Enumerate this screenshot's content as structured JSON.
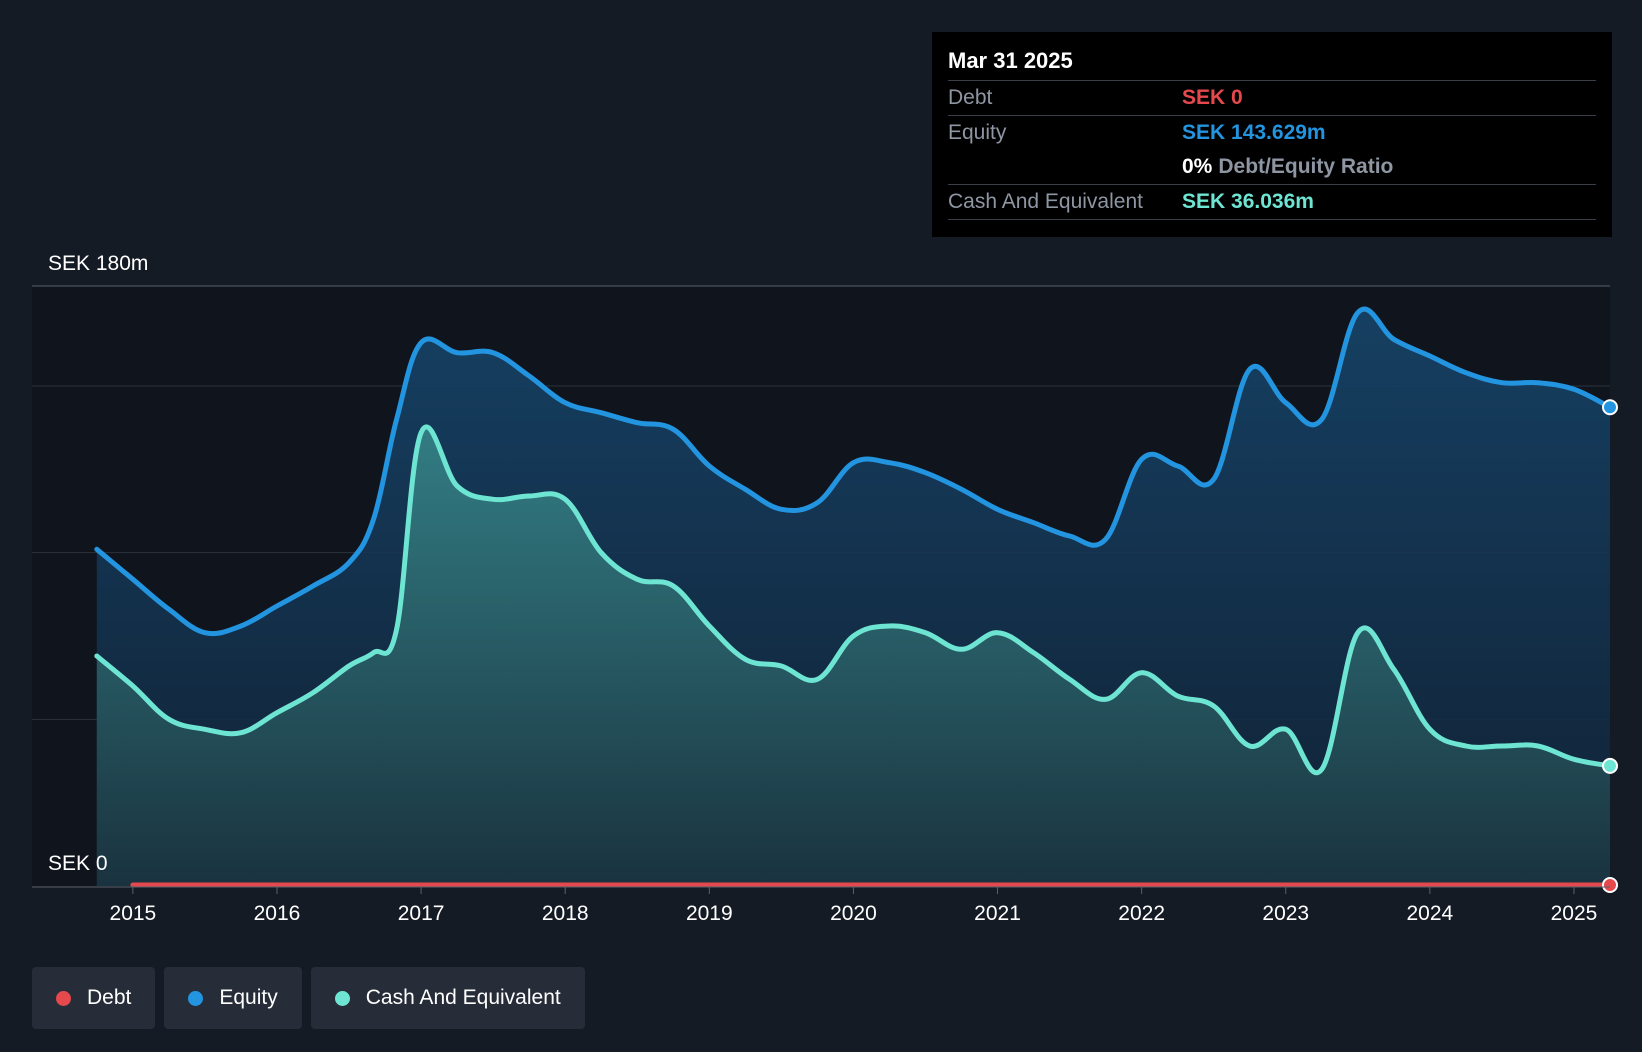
{
  "tooltip": {
    "date": "Mar 31 2025",
    "debt_label": "Debt",
    "debt_value": "SEK 0",
    "equity_label": "Equity",
    "equity_value": "SEK 143.629m",
    "ratio_value": "0%",
    "ratio_label": "Debt/Equity Ratio",
    "cash_label": "Cash And Equivalent",
    "cash_value": "SEK 36.036m"
  },
  "legend": {
    "debt": "Debt",
    "equity": "Equity",
    "cash": "Cash And Equivalent"
  },
  "colors": {
    "background": "#151b24",
    "plot_background": "#10151d",
    "debt": "#e5484d",
    "equity": "#2394df",
    "cash": "#6ee5d3"
  },
  "chart_data": {
    "type": "area",
    "title": "",
    "xlabel": "",
    "ylabel": "",
    "y_top_label": "SEK 180m",
    "y_bottom_label": "SEK 0",
    "ylim": [
      0,
      180
    ],
    "xlim": [
      2014.3,
      2025.25
    ],
    "x_ticks": [
      "2015",
      "2016",
      "2017",
      "2018",
      "2019",
      "2020",
      "2021",
      "2022",
      "2023",
      "2024",
      "2025"
    ],
    "x_tick_values": [
      2015,
      2016,
      2017,
      2018,
      2019,
      2020,
      2021,
      2022,
      2023,
      2024,
      2025
    ],
    "grid_values": [
      50,
      100,
      150,
      180
    ],
    "series": [
      {
        "name": "Equity",
        "x": [
          2014.75,
          2015.0,
          2015.25,
          2015.5,
          2015.75,
          2016.0,
          2016.25,
          2016.5,
          2016.67,
          2016.83,
          2017.0,
          2017.25,
          2017.5,
          2017.75,
          2018.0,
          2018.25,
          2018.5,
          2018.75,
          2019.0,
          2019.25,
          2019.5,
          2019.75,
          2020.0,
          2020.25,
          2020.5,
          2020.75,
          2021.0,
          2021.25,
          2021.5,
          2021.75,
          2022.0,
          2022.25,
          2022.5,
          2022.75,
          2023.0,
          2023.25,
          2023.5,
          2023.75,
          2024.0,
          2024.25,
          2024.5,
          2024.75,
          2025.0,
          2025.25
        ],
        "values": [
          101,
          92,
          83,
          76,
          78,
          84,
          90,
          97,
          110,
          140,
          163,
          160,
          160,
          153,
          145,
          142,
          139,
          137,
          126,
          119,
          113,
          115,
          127,
          127,
          124,
          119,
          113,
          109,
          105,
          104,
          128,
          126,
          122,
          155,
          145,
          140,
          172,
          164,
          159,
          154,
          151,
          151,
          149,
          143.629
        ]
      },
      {
        "name": "Cash And Equivalent",
        "x": [
          2014.75,
          2015.0,
          2015.25,
          2015.5,
          2015.75,
          2016.0,
          2016.25,
          2016.5,
          2016.67,
          2016.83,
          2017.0,
          2017.25,
          2017.5,
          2017.75,
          2018.0,
          2018.25,
          2018.5,
          2018.75,
          2019.0,
          2019.25,
          2019.5,
          2019.75,
          2020.0,
          2020.25,
          2020.5,
          2020.75,
          2021.0,
          2021.25,
          2021.5,
          2021.75,
          2022.0,
          2022.25,
          2022.5,
          2022.75,
          2023.0,
          2023.25,
          2023.5,
          2023.75,
          2024.0,
          2024.25,
          2024.5,
          2024.75,
          2025.0,
          2025.25
        ],
        "values": [
          69,
          60,
          50,
          47,
          46,
          52,
          58,
          66,
          70,
          77,
          136,
          120,
          116,
          117,
          116,
          100,
          92,
          90,
          78,
          68,
          66,
          62,
          75,
          78,
          76,
          71,
          76,
          70,
          62,
          56,
          64,
          57,
          54,
          42,
          47,
          35,
          76,
          65,
          47,
          42,
          42,
          42,
          38,
          36.036
        ]
      },
      {
        "name": "Debt",
        "x": [
          2015.0,
          2025.25
        ],
        "values": [
          0,
          0
        ]
      }
    ]
  }
}
